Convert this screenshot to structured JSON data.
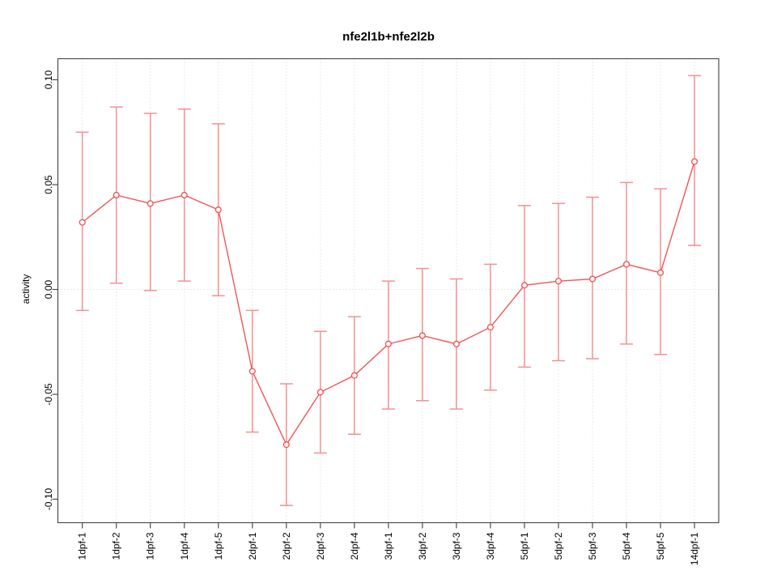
{
  "chart_data": {
    "type": "line",
    "title": "nfe2l1b+nfe2l2b",
    "xlabel": "",
    "ylabel": "activity",
    "categories": [
      "1dpf-1",
      "1dpf-2",
      "1dpf-3",
      "1dpf-4",
      "1dpf-5",
      "2dpf-1",
      "2dpf-2",
      "2dpf-3",
      "2dpf-4",
      "3dpf-1",
      "3dpf-2",
      "3dpf-3",
      "3dpf-4",
      "5dpf-1",
      "5dpf-2",
      "5dpf-3",
      "5dpf-4",
      "5dpf-5",
      "14dpf-1"
    ],
    "series": [
      {
        "name": "activity",
        "marker": "open-circle",
        "values": [
          0.032,
          0.045,
          0.041,
          0.045,
          0.038,
          -0.039,
          -0.074,
          -0.049,
          -0.041,
          -0.026,
          -0.022,
          -0.026,
          -0.018,
          0.002,
          0.004,
          0.005,
          0.012,
          0.008,
          0.061
        ],
        "error_upper": [
          0.075,
          0.087,
          0.084,
          0.086,
          0.079,
          -0.01,
          -0.045,
          -0.02,
          -0.013,
          0.004,
          0.01,
          0.005,
          0.012,
          0.04,
          0.041,
          0.044,
          0.051,
          0.048,
          0.102
        ],
        "error_lower": [
          -0.01,
          0.003,
          -0.0005,
          0.004,
          -0.003,
          -0.068,
          -0.103,
          -0.078,
          -0.069,
          -0.057,
          -0.053,
          -0.057,
          -0.048,
          -0.037,
          -0.034,
          -0.033,
          -0.026,
          -0.031,
          0.021
        ]
      }
    ],
    "ylim": [
      -0.111,
      0.11
    ],
    "yticks": [
      {
        "value": -0.1,
        "label": "-0.10"
      },
      {
        "value": -0.05,
        "label": "-0.05"
      },
      {
        "value": 0.0,
        "label": "0.00"
      },
      {
        "value": 0.05,
        "label": "0.05"
      },
      {
        "value": 0.1,
        "label": "0.10"
      }
    ],
    "grid": {
      "vertical_dotted_per_category": true,
      "horizontal_dotted_zero_line": true
    },
    "legend": "none",
    "x_labels_rotated": true,
    "colors": {
      "series_line": "#f25555",
      "error_bar": "#f59090",
      "marker_stroke": "#ef4f4f",
      "marker_fill": "#ffffff",
      "grid": "#d6d6d6",
      "axis": "#4d4d4d",
      "text": "#000000",
      "background": "#ffffff"
    }
  }
}
